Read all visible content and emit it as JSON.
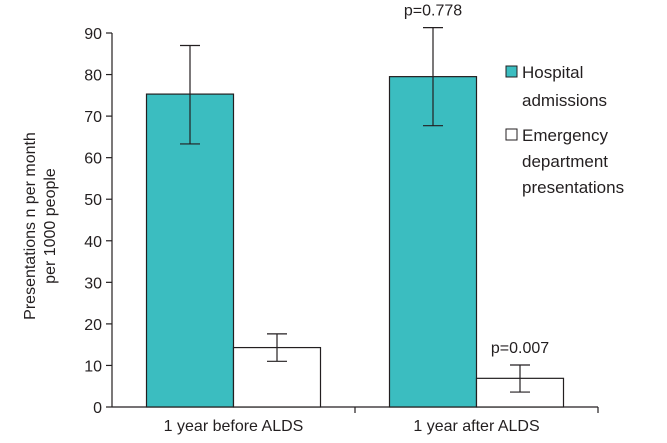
{
  "chart_data": {
    "type": "bar",
    "categories": [
      "1 year before ALDS",
      "1 year after ALDS"
    ],
    "series": [
      {
        "name": "Hospital admissions",
        "values": [
          75.3,
          79.5
        ],
        "error_low": [
          63.3,
          67.7
        ],
        "error_high": [
          87.0,
          91.3
        ],
        "color": "#3bbdc0"
      },
      {
        "name": "Emergency department presentations",
        "legend_lines": [
          "Emergency",
          "department",
          "presentations"
        ],
        "values": [
          14.3,
          6.9
        ],
        "error_low": [
          11.0,
          3.6
        ],
        "error_high": [
          17.6,
          10.1
        ],
        "color": "#ffffff"
      }
    ],
    "ylabel_lines": [
      "Presentations n per month",
      "per 1000 people"
    ],
    "ylim": [
      0,
      90
    ],
    "yticks": [
      0,
      10,
      20,
      30,
      40,
      50,
      60,
      70,
      80,
      90
    ],
    "legend_position": "right",
    "legend": {
      "hospital_line1": "Hospital",
      "hospital_line2": "admissions",
      "emergency_line1": "Emergency",
      "emergency_line2": "department",
      "emergency_line3": "presentations"
    },
    "annotations": [
      {
        "text": "p=0.778",
        "category_index": 1,
        "series_index": 0
      },
      {
        "text": "p=0.007",
        "category_index": 1,
        "series_index": 1
      }
    ],
    "grid": false
  }
}
